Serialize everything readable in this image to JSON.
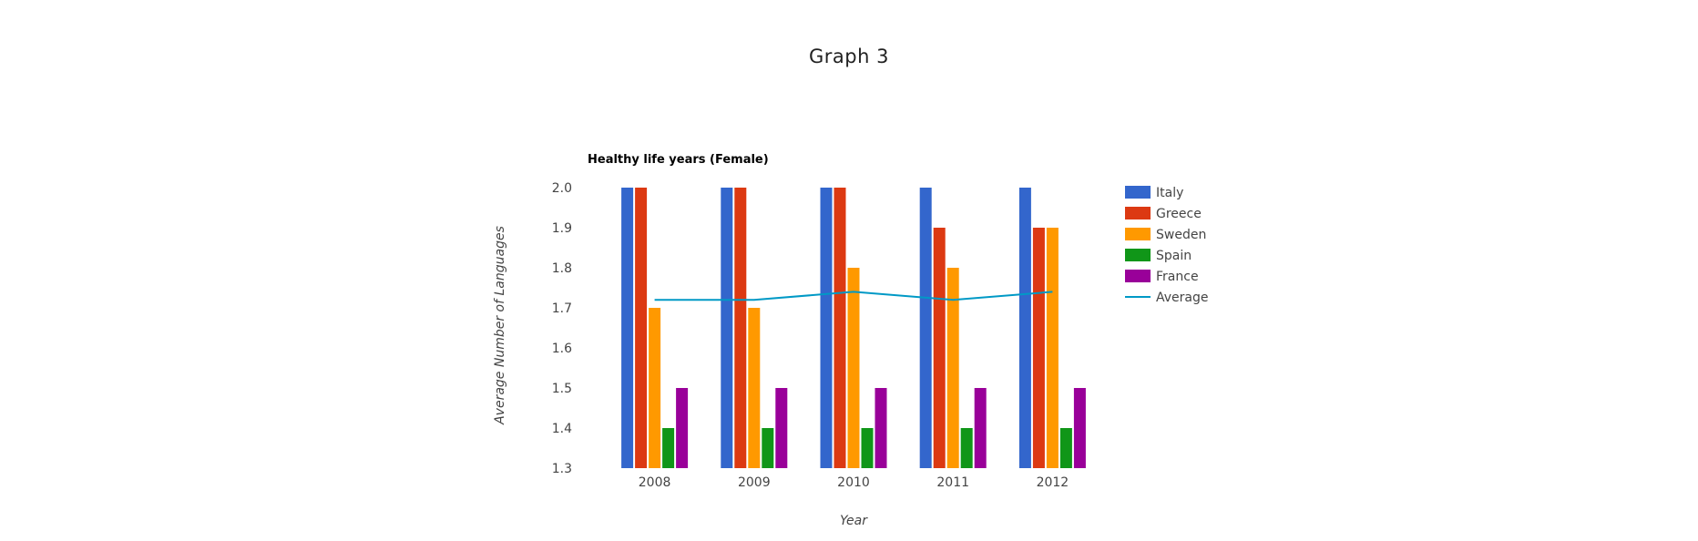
{
  "page": {
    "heading": "Graph 3"
  },
  "chart_data": {
    "type": "bar",
    "title": "Healthy life years (Female)",
    "xlabel": "Year",
    "ylabel": "Average Number of Languages",
    "categories": [
      "2008",
      "2009",
      "2010",
      "2011",
      "2012"
    ],
    "ylim": [
      1.3,
      2.0
    ],
    "yticks": [
      "1.3",
      "1.4",
      "1.5",
      "1.6",
      "1.7",
      "1.8",
      "1.9",
      "2.0"
    ],
    "grid": false,
    "legend_position": "right",
    "series": [
      {
        "name": "Italy",
        "type": "bar",
        "color": "#3366cc",
        "values": [
          2.0,
          2.0,
          2.0,
          2.0,
          2.0
        ]
      },
      {
        "name": "Greece",
        "type": "bar",
        "color": "#dc3912",
        "values": [
          2.0,
          2.0,
          2.0,
          1.9,
          1.9
        ]
      },
      {
        "name": "Sweden",
        "type": "bar",
        "color": "#ff9900",
        "values": [
          1.7,
          1.7,
          1.8,
          1.8,
          1.9
        ]
      },
      {
        "name": "Spain",
        "type": "bar",
        "color": "#109618",
        "values": [
          1.4,
          1.4,
          1.4,
          1.4,
          1.4
        ]
      },
      {
        "name": "France",
        "type": "bar",
        "color": "#990099",
        "values": [
          1.5,
          1.5,
          1.5,
          1.5,
          1.5
        ]
      },
      {
        "name": "Average",
        "type": "line",
        "color": "#0099c6",
        "values": [
          1.72,
          1.72,
          1.74,
          1.72,
          1.74
        ]
      }
    ]
  }
}
